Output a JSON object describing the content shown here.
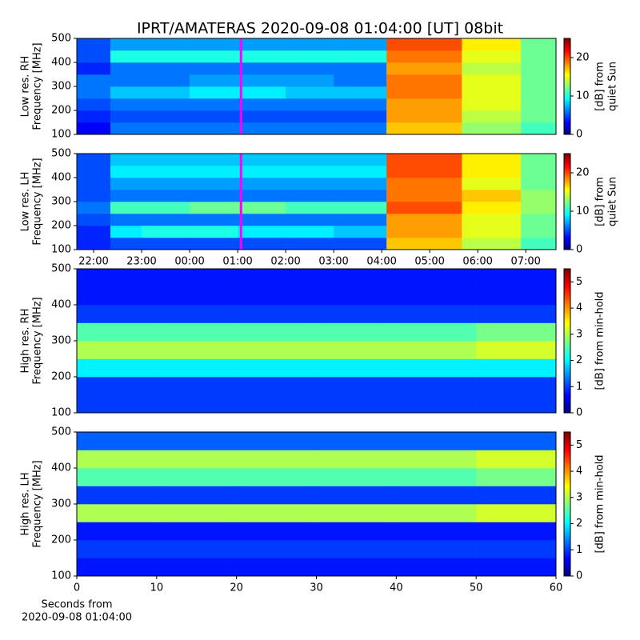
{
  "title": "IPRT/AMATERAS 2020-09-08 01:04:00 [UT]   08bit",
  "chart_data": [
    {
      "type": "heatmap",
      "ylabel": [
        "Low res. RH",
        "Frequency [MHz]"
      ],
      "colormap": "jet",
      "xlim": [
        21.65,
        31.63
      ],
      "ylim": [
        100,
        500
      ],
      "yticks": [
        100,
        200,
        300,
        400,
        500
      ],
      "x_edges": [
        21.65,
        22.35,
        23,
        24,
        25,
        26,
        27,
        28.1,
        29.67,
        30.9,
        31.63
      ],
      "y_edges": [
        100,
        150,
        200,
        250,
        300,
        350,
        400,
        450,
        500
      ],
      "z": [
        [
          3,
          6,
          6,
          6,
          6,
          6,
          6,
          17,
          13,
          11
        ],
        [
          4,
          5,
          5,
          5,
          5,
          5,
          5,
          18,
          14,
          12
        ],
        [
          5,
          6,
          6,
          6,
          6,
          6,
          6,
          18,
          15,
          12
        ],
        [
          6,
          8,
          8,
          9,
          9,
          8,
          8,
          19,
          15,
          12
        ],
        [
          6,
          6,
          6,
          7,
          7,
          7,
          6,
          19,
          15,
          12
        ],
        [
          4,
          6,
          6,
          6,
          6,
          6,
          6,
          18,
          14,
          12
        ],
        [
          5,
          10,
          10,
          10,
          10,
          10,
          10,
          19,
          15,
          12
        ],
        [
          5,
          7,
          7,
          7,
          7,
          7,
          7,
          20,
          16,
          12
        ]
      ],
      "marker_x": 25.07,
      "marker_color": "#ff00ff",
      "clim": [
        0,
        25
      ],
      "cticks": [
        0,
        10,
        20
      ],
      "clabel": [
        "[dB] from",
        "quiet Sun"
      ]
    },
    {
      "type": "heatmap",
      "ylabel": [
        "Low res. LH",
        "Frequency [MHz]"
      ],
      "colormap": "jet",
      "xlim": [
        21.65,
        31.63
      ],
      "ylim": [
        100,
        500
      ],
      "yticks": [
        100,
        200,
        300,
        400,
        500
      ],
      "xticks": [
        {
          "value": 22,
          "label": "22:00"
        },
        {
          "value": 23,
          "label": "23:00"
        },
        {
          "value": 24,
          "label": "00:00"
        },
        {
          "value": 25,
          "label": "01:00"
        },
        {
          "value": 26,
          "label": "02:00"
        },
        {
          "value": 27,
          "label": "03:00"
        },
        {
          "value": 28,
          "label": "04:00"
        },
        {
          "value": 29,
          "label": "05:00"
        },
        {
          "value": 30,
          "label": "06:00"
        },
        {
          "value": 31,
          "label": "07:00"
        }
      ],
      "x_edges": [
        21.65,
        22.35,
        23,
        24,
        25,
        26,
        27,
        28.1,
        29.67,
        30.9,
        31.63
      ],
      "y_edges": [
        100,
        150,
        200,
        250,
        300,
        350,
        400,
        450,
        500
      ],
      "z": [
        [
          4,
          5,
          5,
          5,
          5,
          5,
          5,
          17,
          14,
          11
        ],
        [
          4,
          9,
          10,
          10,
          9,
          9,
          8,
          18,
          15,
          12
        ],
        [
          5,
          6,
          6,
          6,
          6,
          6,
          6,
          18,
          15,
          12
        ],
        [
          6,
          11,
          11,
          12,
          12,
          11,
          11,
          20,
          16,
          13
        ],
        [
          5,
          6,
          6,
          6,
          6,
          6,
          6,
          19,
          17,
          13
        ],
        [
          5,
          7,
          7,
          7,
          7,
          7,
          7,
          19,
          15,
          12
        ],
        [
          5,
          9,
          9,
          9,
          9,
          9,
          9,
          20,
          16,
          12
        ],
        [
          5,
          8,
          8,
          8,
          8,
          8,
          8,
          20,
          16,
          12
        ]
      ],
      "marker_x": 25.07,
      "marker_color": "#ff00ff",
      "clim": [
        0,
        25
      ],
      "cticks": [
        0,
        10,
        20
      ],
      "clabel": [
        "[dB] from",
        "quiet Sun"
      ]
    },
    {
      "type": "heatmap",
      "ylabel": [
        "High res. RH",
        "Frequency [MHz]"
      ],
      "colormap": "jet",
      "xlim": [
        0,
        60
      ],
      "ylim": [
        100,
        500
      ],
      "yticks": [
        100,
        200,
        300,
        400,
        500
      ],
      "x_edges": [
        0,
        10,
        20,
        30,
        40,
        50,
        60
      ],
      "y_edges": [
        100,
        150,
        200,
        250,
        300,
        350,
        400,
        450,
        500
      ],
      "z": [
        [
          1,
          1,
          1,
          1,
          1,
          1
        ],
        [
          1,
          1,
          1,
          1,
          1,
          1
        ],
        [
          2,
          2,
          2,
          2,
          2,
          2
        ],
        [
          3,
          3,
          3,
          3,
          3,
          3.2
        ],
        [
          2.5,
          2.5,
          2.5,
          2.5,
          2.5,
          2.7
        ],
        [
          1,
          1,
          1,
          1,
          1,
          1
        ],
        [
          0.8,
          0.8,
          0.8,
          0.8,
          0.8,
          0.8
        ],
        [
          0.8,
          0.8,
          0.8,
          0.8,
          0.8,
          0.8
        ]
      ],
      "clim": [
        0,
        5.5
      ],
      "cticks": [
        0,
        1,
        2,
        3,
        4,
        5
      ],
      "clabel": [
        "[dB] from min-hold"
      ]
    },
    {
      "type": "heatmap",
      "ylabel": [
        "High res. LH",
        "Frequency [MHz]"
      ],
      "colormap": "jet",
      "xlim": [
        0,
        60
      ],
      "ylim": [
        100,
        500
      ],
      "yticks": [
        100,
        200,
        300,
        400,
        500
      ],
      "xticks": [
        0,
        10,
        20,
        30,
        40,
        50,
        60
      ],
      "xlabel": [
        "Seconds from",
        "2020-09-08 01:04:00"
      ],
      "x_edges": [
        0,
        10,
        20,
        30,
        40,
        50,
        60
      ],
      "y_edges": [
        100,
        150,
        200,
        250,
        300,
        350,
        400,
        450,
        500
      ],
      "z": [
        [
          0.8,
          0.8,
          0.8,
          0.8,
          0.8,
          0.8
        ],
        [
          1,
          1,
          1,
          1,
          1,
          1
        ],
        [
          0.8,
          0.8,
          0.8,
          0.8,
          0.8,
          0.8
        ],
        [
          3,
          3,
          3,
          3,
          3,
          3.2
        ],
        [
          1,
          1,
          1,
          1,
          1,
          1
        ],
        [
          2.5,
          2.5,
          2.5,
          2.5,
          2.5,
          2.7
        ],
        [
          3,
          3,
          3,
          3,
          3,
          3.2
        ],
        [
          1.2,
          1.2,
          1.2,
          1.2,
          1.2,
          1.2
        ]
      ],
      "clim": [
        0,
        5.5
      ],
      "cticks": [
        0,
        1,
        2,
        3,
        4,
        5
      ],
      "clabel": [
        "[dB] from min-hold"
      ]
    }
  ]
}
